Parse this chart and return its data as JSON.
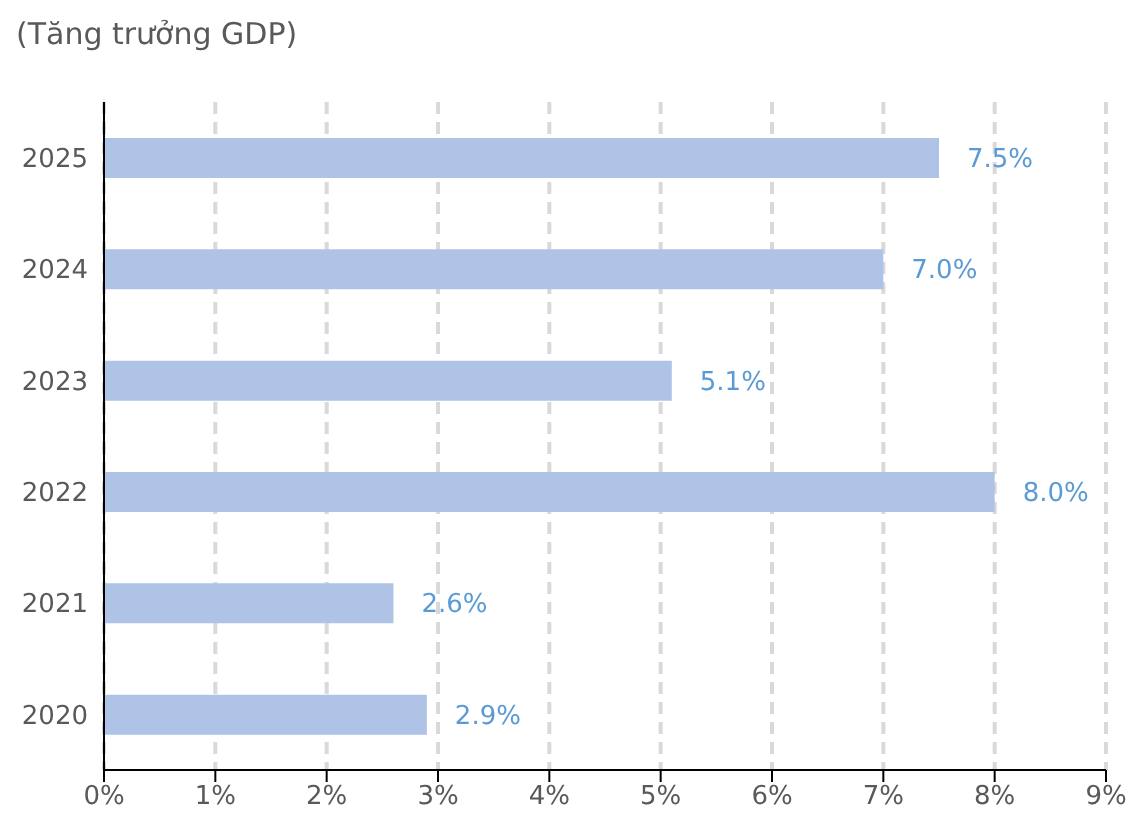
{
  "chart_data": {
    "type": "bar",
    "orientation": "horizontal",
    "title": "(Tăng trưởng GDP)",
    "categories": [
      "2025",
      "2024",
      "2023",
      "2022",
      "2021",
      "2020"
    ],
    "values": [
      7.5,
      7.0,
      5.1,
      8.0,
      2.6,
      2.9
    ],
    "value_labels": [
      "7.5%",
      "7.0%",
      "5.1%",
      "8.0%",
      "2.6%",
      "2.9%"
    ],
    "color": "#aec3e6",
    "xlim": [
      0,
      9
    ],
    "xticks": [
      {
        "value": 0,
        "label": "0%"
      },
      {
        "value": 1,
        "label": "1%"
      },
      {
        "value": 2,
        "label": "2%"
      },
      {
        "value": 3,
        "label": "3%"
      },
      {
        "value": 4,
        "label": "4%"
      },
      {
        "value": 5,
        "label": "5%"
      },
      {
        "value": 6,
        "label": "6%"
      },
      {
        "value": 7,
        "label": "7%"
      },
      {
        "value": 8,
        "label": "8%"
      },
      {
        "value": 9,
        "label": "9%"
      }
    ],
    "grid": "x",
    "legend": false
  }
}
